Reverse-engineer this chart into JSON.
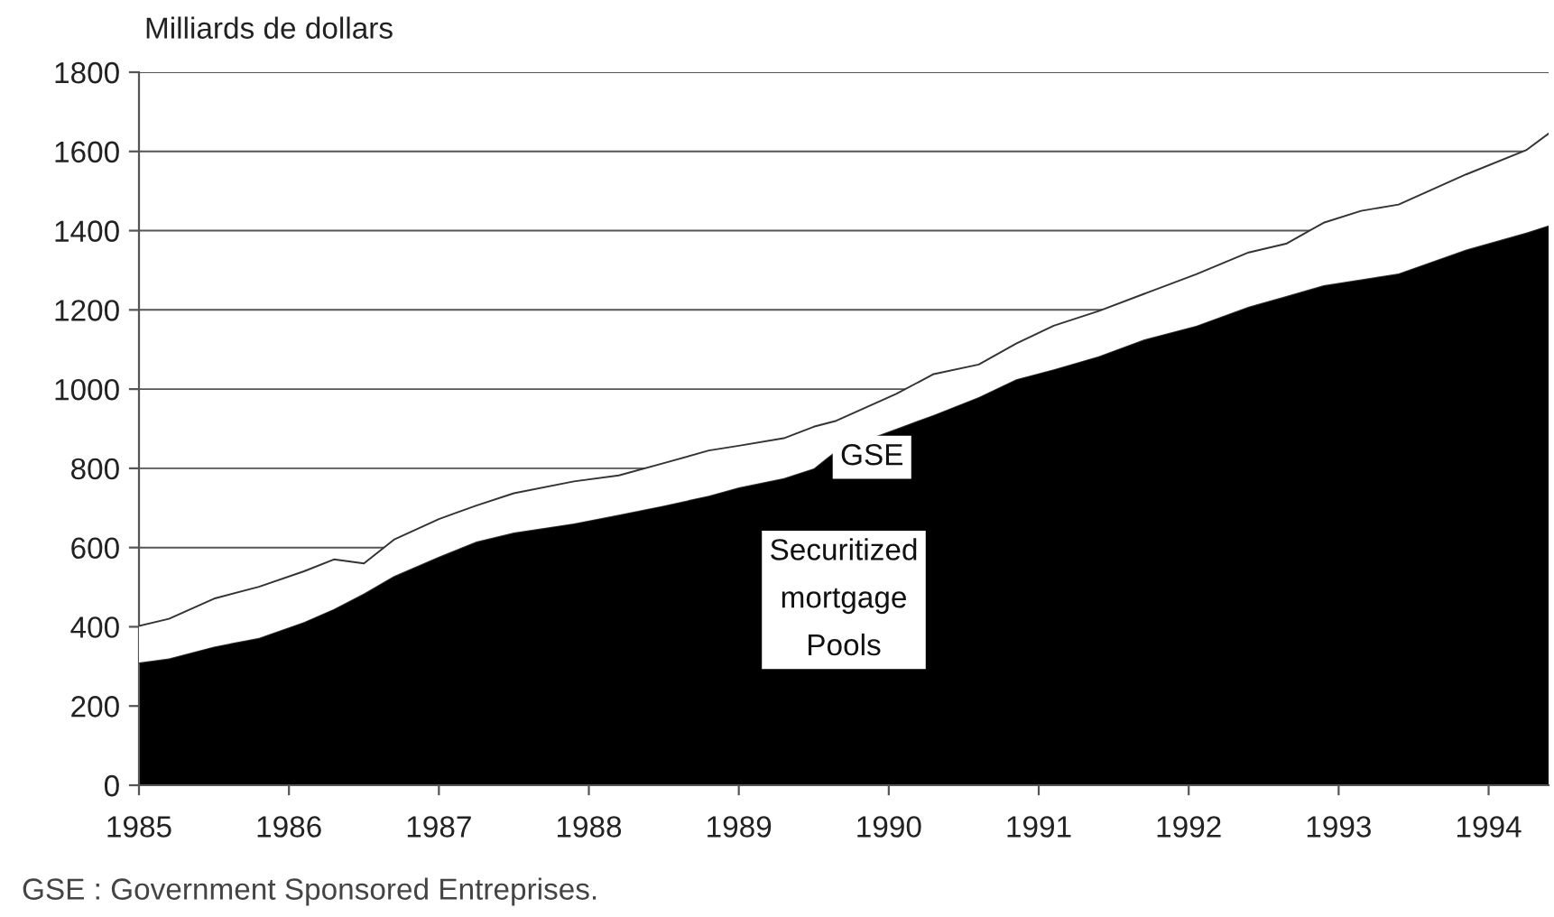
{
  "chart_data": {
    "type": "area",
    "stacked": true,
    "ylabel": "Milliards de dollars",
    "x": [
      1985.0,
      1985.2,
      1985.5,
      1985.8,
      1986.1,
      1986.3,
      1986.5,
      1986.7,
      1987.0,
      1987.25,
      1987.5,
      1987.9,
      1988.2,
      1988.5,
      1988.8,
      1989.0,
      1989.3,
      1989.5,
      1989.65,
      1990.05,
      1990.3,
      1990.6,
      1990.85,
      1991.1,
      1991.4,
      1991.7,
      1992.05,
      1992.4,
      1992.65,
      1992.9,
      1993.15,
      1993.4,
      1993.85,
      1994.25,
      1994.4
    ],
    "series": [
      {
        "name": "Securitized\nmortgage\nPools",
        "color": "#000000",
        "values": [
          310,
          320,
          350,
          372,
          412,
          445,
          484,
          528,
          577,
          615,
          638,
          661,
          683,
          706,
          731,
          752,
          775,
          800,
          845,
          900,
          935,
          980,
          1025,
          1050,
          1083,
          1125,
          1160,
          1208,
          1235,
          1262,
          1277,
          1292,
          1352,
          1395,
          1413
        ]
      },
      {
        "name": "GSE",
        "color": "#ffffff",
        "values": [
          92,
          100,
          121,
          129,
          128,
          125,
          76,
          92,
          95,
          91,
          99,
          106,
          99,
          107,
          114,
          105,
          101,
          105,
          75,
          88,
          103,
          82,
          90,
          110,
          114,
          115,
          130,
          137,
          132,
          158,
          173,
          174,
          190,
          208,
          232
        ]
      }
    ],
    "xlim": [
      1985,
      1994.4
    ],
    "xticks": [
      1985,
      1986,
      1987,
      1988,
      1989,
      1990,
      1991,
      1992,
      1993,
      1994
    ],
    "ylim": [
      0,
      1800
    ],
    "yticks": [
      0,
      200,
      400,
      600,
      800,
      1000,
      1200,
      1400,
      1600,
      1800
    ],
    "grid": "y",
    "legend": false,
    "annotations": [
      "GSE : Government Sponsored Entreprises."
    ]
  }
}
